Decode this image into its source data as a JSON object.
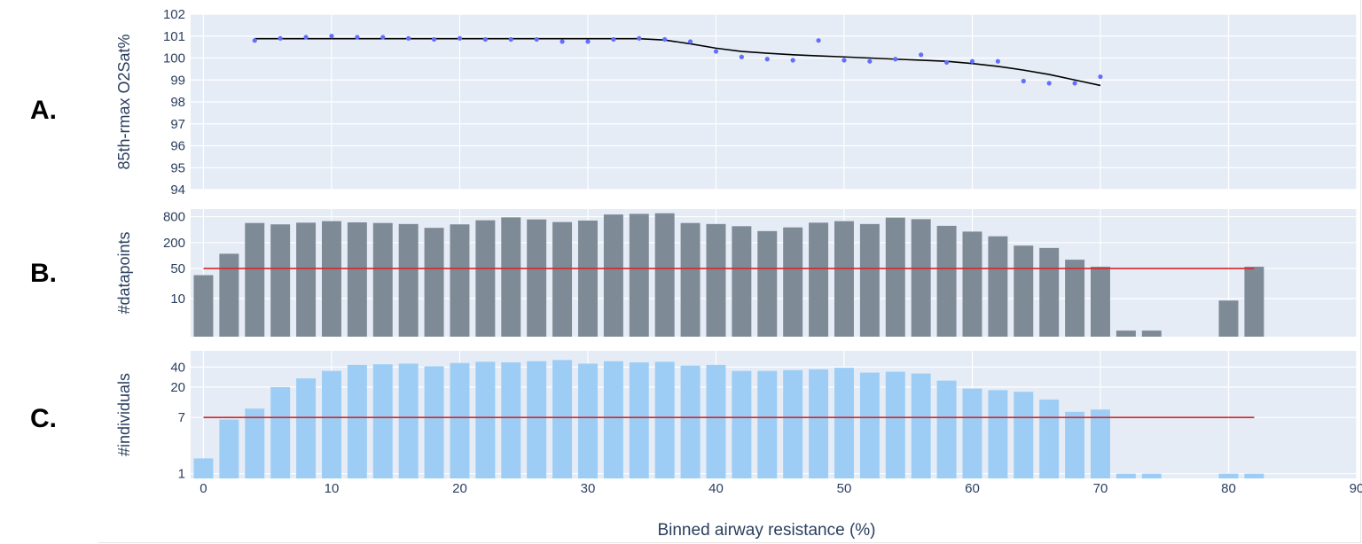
{
  "panel_labels": {
    "a": "A.",
    "b": "B.",
    "c": "C."
  },
  "colors": {
    "plot_bg": "#E5ECF6",
    "grid": "#ffffff",
    "points": "#636EFA",
    "fit_line": "#000000",
    "bars_b": "#7F8A97",
    "bars_c": "#9DCDF5",
    "threshold": "#D62728",
    "text": "#2A3F5F"
  },
  "chart_data": [
    {
      "id": "A",
      "type": "scatter",
      "ylabel": "85th-rmax O2Sat%",
      "xlim": [
        -1,
        90
      ],
      "ylim": [
        94,
        102
      ],
      "yticks": [
        94,
        95,
        96,
        97,
        98,
        99,
        100,
        101,
        102
      ],
      "points": {
        "x": [
          4,
          6,
          8,
          10,
          12,
          14,
          16,
          18,
          20,
          22,
          24,
          26,
          28,
          30,
          32,
          34,
          36,
          38,
          40,
          42,
          44,
          46,
          48,
          50,
          52,
          54,
          56,
          58,
          60,
          62,
          64,
          66,
          68,
          70
        ],
        "y": [
          100.8,
          100.9,
          100.95,
          101.0,
          100.95,
          100.95,
          100.9,
          100.85,
          100.9,
          100.85,
          100.85,
          100.85,
          100.75,
          100.75,
          100.85,
          100.9,
          100.85,
          100.75,
          100.3,
          100.05,
          99.95,
          99.9,
          100.8,
          99.9,
          99.85,
          99.95,
          100.15,
          99.8,
          99.85,
          99.85,
          98.95,
          98.85,
          98.85,
          99.15
        ]
      },
      "fit_line": {
        "x": [
          4,
          10,
          20,
          30,
          34,
          36,
          38,
          40,
          42,
          44,
          46,
          48,
          50,
          52,
          54,
          56,
          58,
          60,
          62,
          64,
          66,
          68,
          70
        ],
        "y": [
          100.88,
          100.88,
          100.88,
          100.88,
          100.88,
          100.82,
          100.65,
          100.45,
          100.3,
          100.22,
          100.15,
          100.1,
          100.05,
          100.0,
          99.95,
          99.9,
          99.85,
          99.75,
          99.62,
          99.45,
          99.25,
          99.0,
          98.75
        ]
      }
    },
    {
      "id": "B",
      "type": "bar",
      "ylabel": "#datapoints",
      "y_scale": "log",
      "yticks": [
        10,
        50,
        200,
        800
      ],
      "y_domain": [
        1.3,
        1200
      ],
      "x": [
        0,
        2,
        4,
        6,
        8,
        10,
        12,
        14,
        16,
        18,
        20,
        22,
        24,
        26,
        28,
        30,
        32,
        34,
        36,
        38,
        40,
        42,
        44,
        46,
        48,
        50,
        52,
        54,
        56,
        58,
        60,
        62,
        64,
        66,
        68,
        70,
        72,
        74,
        80,
        82
      ],
      "values": [
        35,
        110,
        570,
        530,
        580,
        630,
        590,
        570,
        540,
        440,
        530,
        660,
        770,
        690,
        600,
        650,
        900,
        930,
        960,
        570,
        540,
        480,
        370,
        450,
        580,
        630,
        540,
        760,
        700,
        490,
        360,
        280,
        170,
        150,
        80,
        55,
        1.8,
        1.8,
        9,
        55
      ],
      "threshold": 50,
      "threshold_x": [
        0,
        82
      ]
    },
    {
      "id": "C",
      "type": "bar",
      "ylabel": "#individuals",
      "y_scale": "log",
      "yticks": [
        1,
        7,
        20,
        40
      ],
      "y_domain": [
        0.85,
        70
      ],
      "x": [
        0,
        2,
        4,
        6,
        8,
        10,
        12,
        14,
        16,
        18,
        20,
        22,
        24,
        26,
        28,
        30,
        32,
        34,
        36,
        38,
        40,
        42,
        44,
        46,
        48,
        50,
        52,
        54,
        56,
        58,
        60,
        62,
        64,
        66,
        68,
        70,
        72,
        74,
        80,
        82
      ],
      "values": [
        1.7,
        6.5,
        9.5,
        20,
        27,
        35,
        43,
        44,
        45,
        41,
        46,
        48,
        47,
        49,
        51,
        45,
        49,
        47,
        48,
        42,
        43,
        35,
        35,
        36,
        37,
        39,
        33,
        34,
        32,
        25,
        19,
        18,
        17,
        13,
        8.5,
        9.2,
        1,
        1,
        1,
        1
      ],
      "threshold": 7,
      "threshold_x": [
        0,
        82
      ]
    }
  ],
  "x_axis": {
    "label": "Binned airway resistance (%)",
    "ticks": [
      0,
      10,
      20,
      30,
      40,
      50,
      60,
      70,
      80,
      90
    ],
    "range": [
      -1,
      90
    ]
  }
}
